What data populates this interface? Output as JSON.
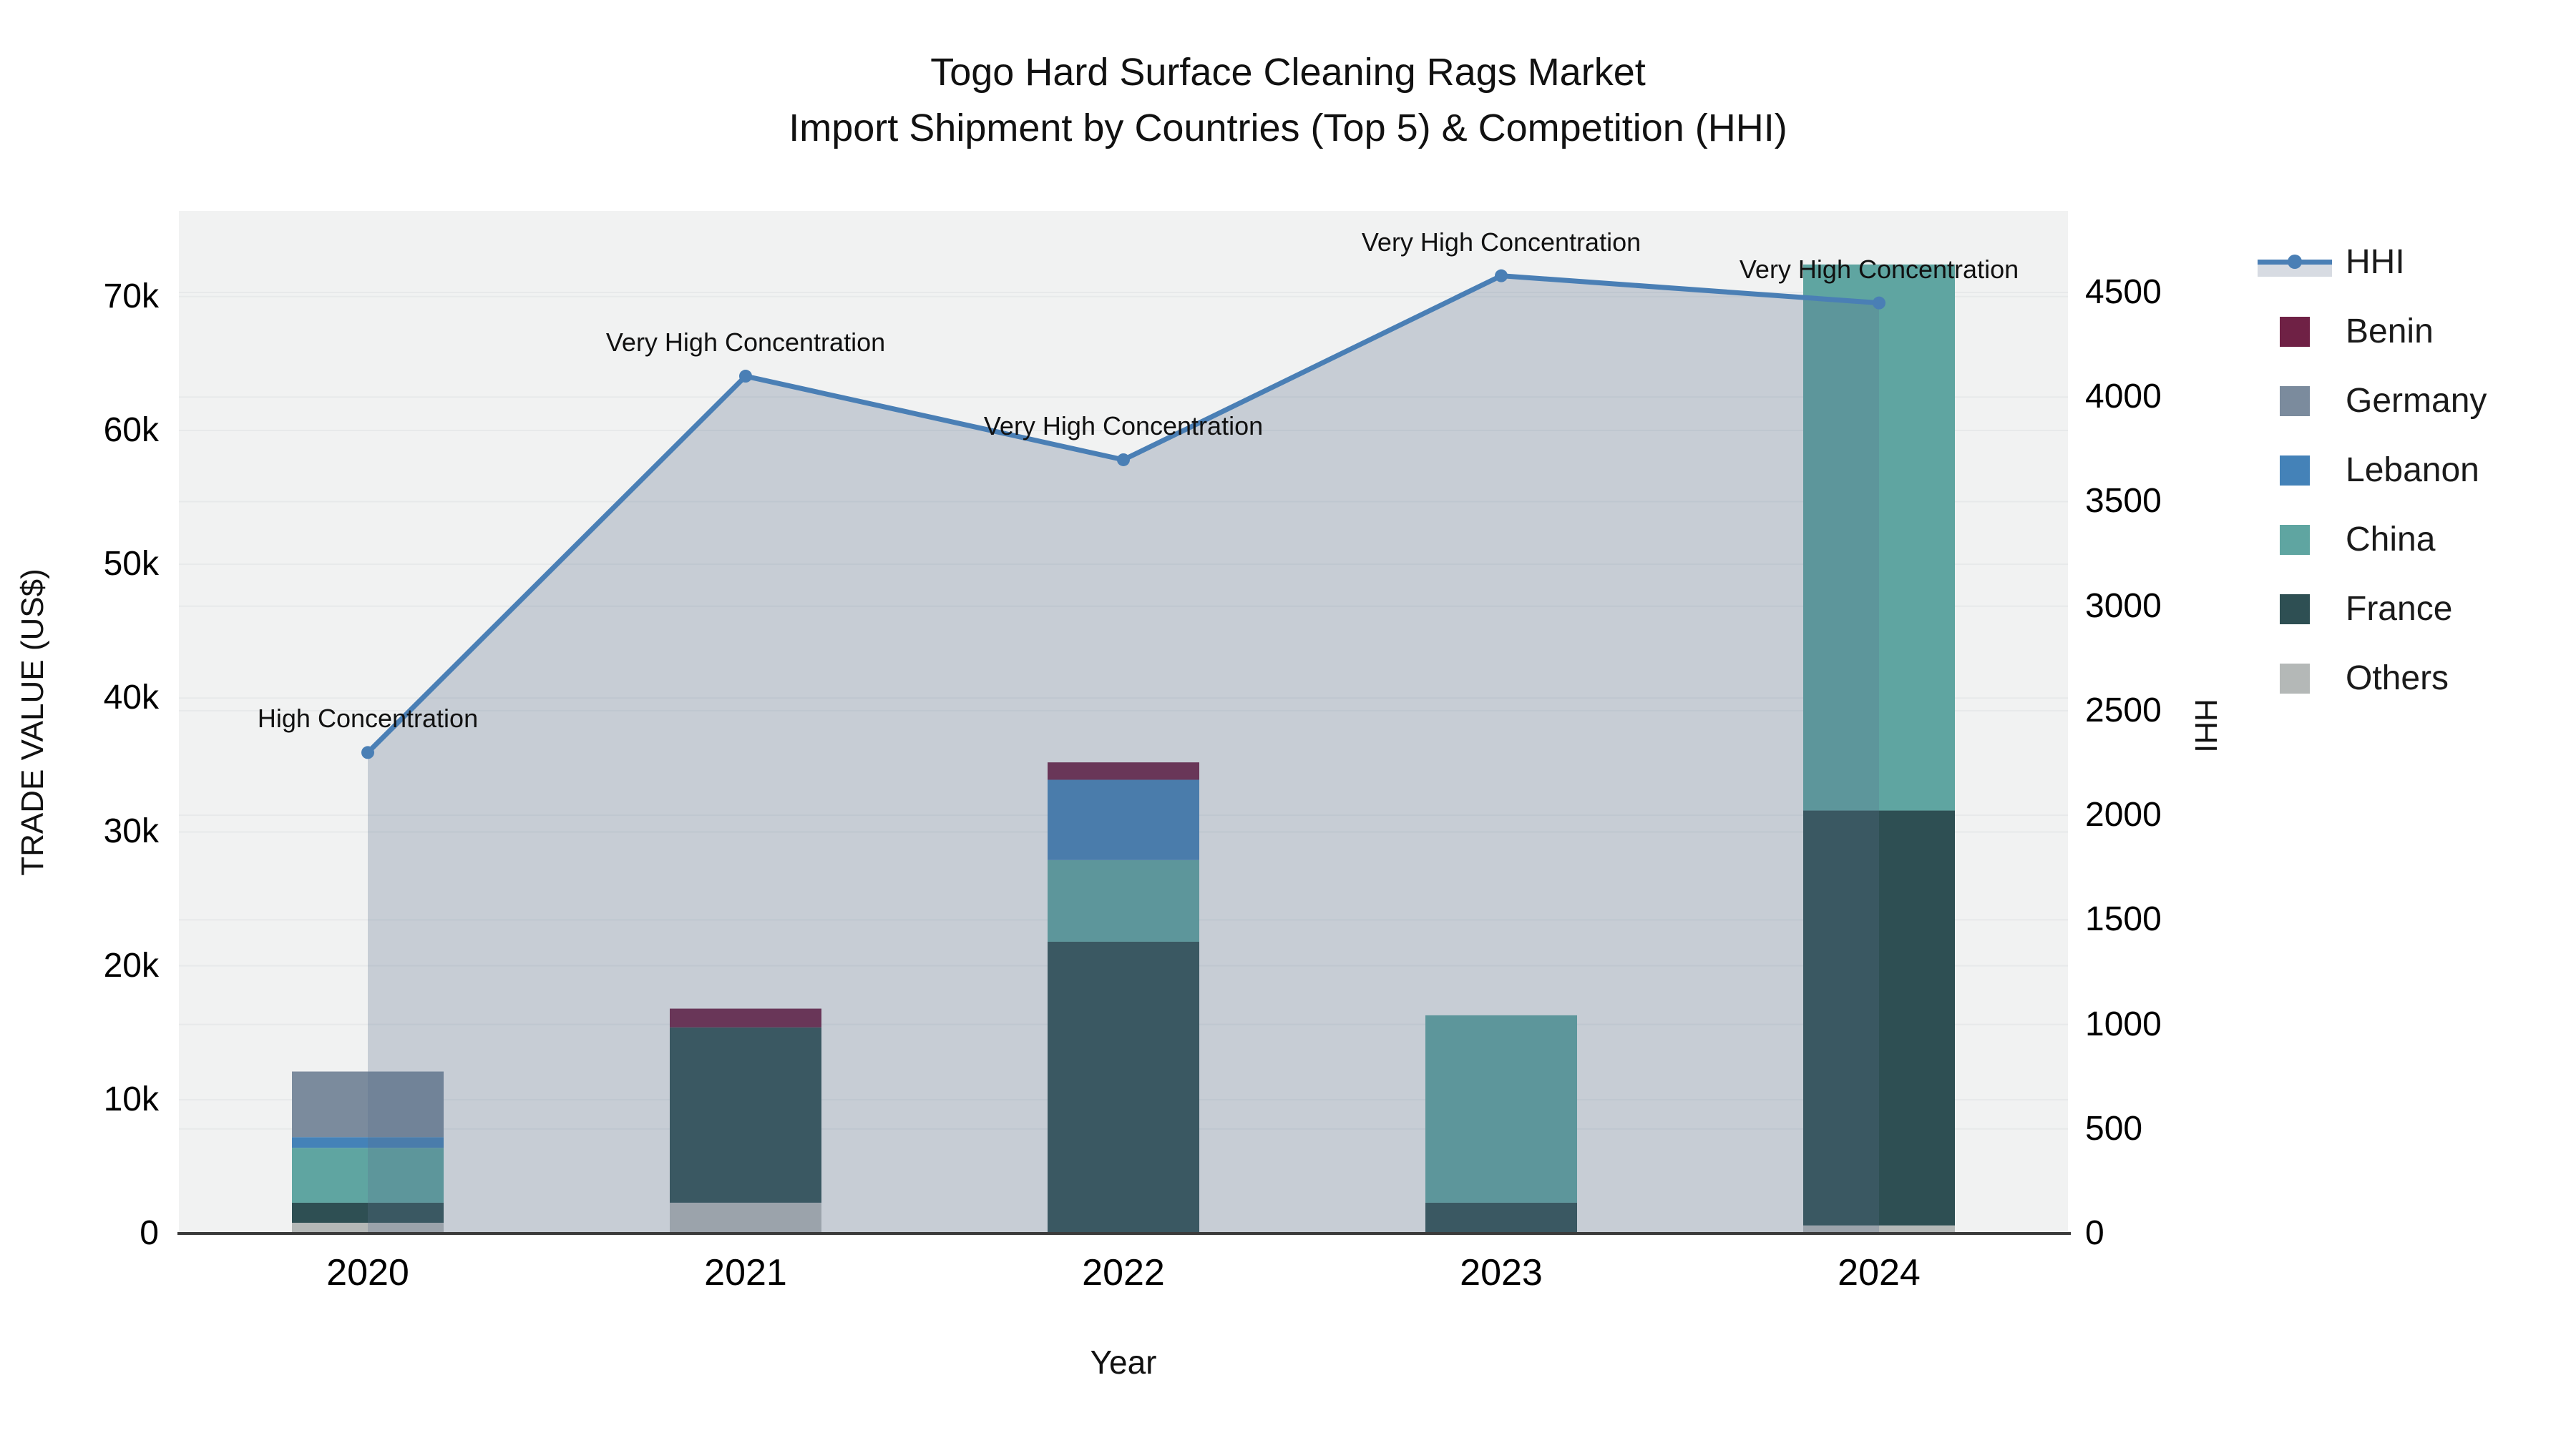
{
  "title": {
    "line1": "Togo Hard Surface Cleaning Rags Market",
    "line2": "Import Shipment by Countries (Top 5) & Competition (HHI)"
  },
  "chart_data": {
    "type": "bar+line",
    "title": "Togo Hard Surface Cleaning Rags Market Import Shipment by Countries (Top 5) & Competition (HHI)",
    "xlabel": "Year",
    "ylabel_left": "TRADE VALUE (US$)",
    "ylabel_right": "HHI",
    "categories": [
      "2020",
      "2021",
      "2022",
      "2023",
      "2024"
    ],
    "bar_series": [
      {
        "name": "Others",
        "color": "#b4b8b7",
        "values": [
          800,
          2300,
          0,
          0,
          600
        ]
      },
      {
        "name": "France",
        "color": "#2e4f53",
        "values": [
          1500,
          13100,
          21800,
          2300,
          31000
        ]
      },
      {
        "name": "China",
        "color": "#5fa5a1",
        "values": [
          4100,
          0,
          6100,
          14000,
          40800
        ]
      },
      {
        "name": "Lebanon",
        "color": "#4482b8",
        "values": [
          800,
          0,
          6000,
          0,
          0
        ]
      },
      {
        "name": "Germany",
        "color": "#7b8b9d",
        "values": [
          4900,
          0,
          0,
          0,
          0
        ]
      },
      {
        "name": "Benin",
        "color": "#6f2145",
        "values": [
          0,
          1400,
          1300,
          0,
          0
        ]
      }
    ],
    "stack_order": "bottom-to-top",
    "line_series": {
      "name": "HHI",
      "color": "#4a7fb5",
      "area_fill": "rgba(90,110,140,0.28)",
      "area_swatch": "#d7dbe2",
      "values": [
        2300,
        4100,
        3700,
        4580,
        4450
      ]
    },
    "annotations": [
      "High Concentration",
      "Very High Concentration",
      "Very High Concentration",
      "Very High Concentration",
      "Very High Concentration"
    ],
    "y_left": {
      "range": [
        0,
        76400
      ],
      "ticks": [
        0,
        10000,
        20000,
        30000,
        40000,
        50000,
        60000,
        70000
      ],
      "labels": [
        "0",
        "10k",
        "20k",
        "30k",
        "40k",
        "50k",
        "60k",
        "70k"
      ]
    },
    "y_right": {
      "range": [
        0,
        4890
      ],
      "ticks": [
        0,
        500,
        1000,
        1500,
        2000,
        2500,
        3000,
        3500,
        4000,
        4500
      ],
      "labels": [
        "0",
        "500",
        "1000",
        "1500",
        "2000",
        "2500",
        "3000",
        "3500",
        "4000",
        "4500"
      ]
    },
    "grid": true,
    "legend_position": "right",
    "legend": [
      {
        "label": "HHI",
        "color": "#4a7fb5",
        "swatch": "line"
      },
      {
        "label": "Benin",
        "color": "#6f2145",
        "swatch": "box"
      },
      {
        "label": "Germany",
        "color": "#7b8b9d",
        "swatch": "box"
      },
      {
        "label": "Lebanon",
        "color": "#4482b8",
        "swatch": "box"
      },
      {
        "label": "China",
        "color": "#5fa5a1",
        "swatch": "box"
      },
      {
        "label": "France",
        "color": "#2e4f53",
        "swatch": "box"
      },
      {
        "label": "Others",
        "color": "#b4b8b7",
        "swatch": "box"
      }
    ],
    "colors": {
      "plot_background": "#f1f2f2",
      "gridline": "#e7e9ea",
      "axis_line": "#3b3b3b",
      "text": "#111111"
    }
  }
}
